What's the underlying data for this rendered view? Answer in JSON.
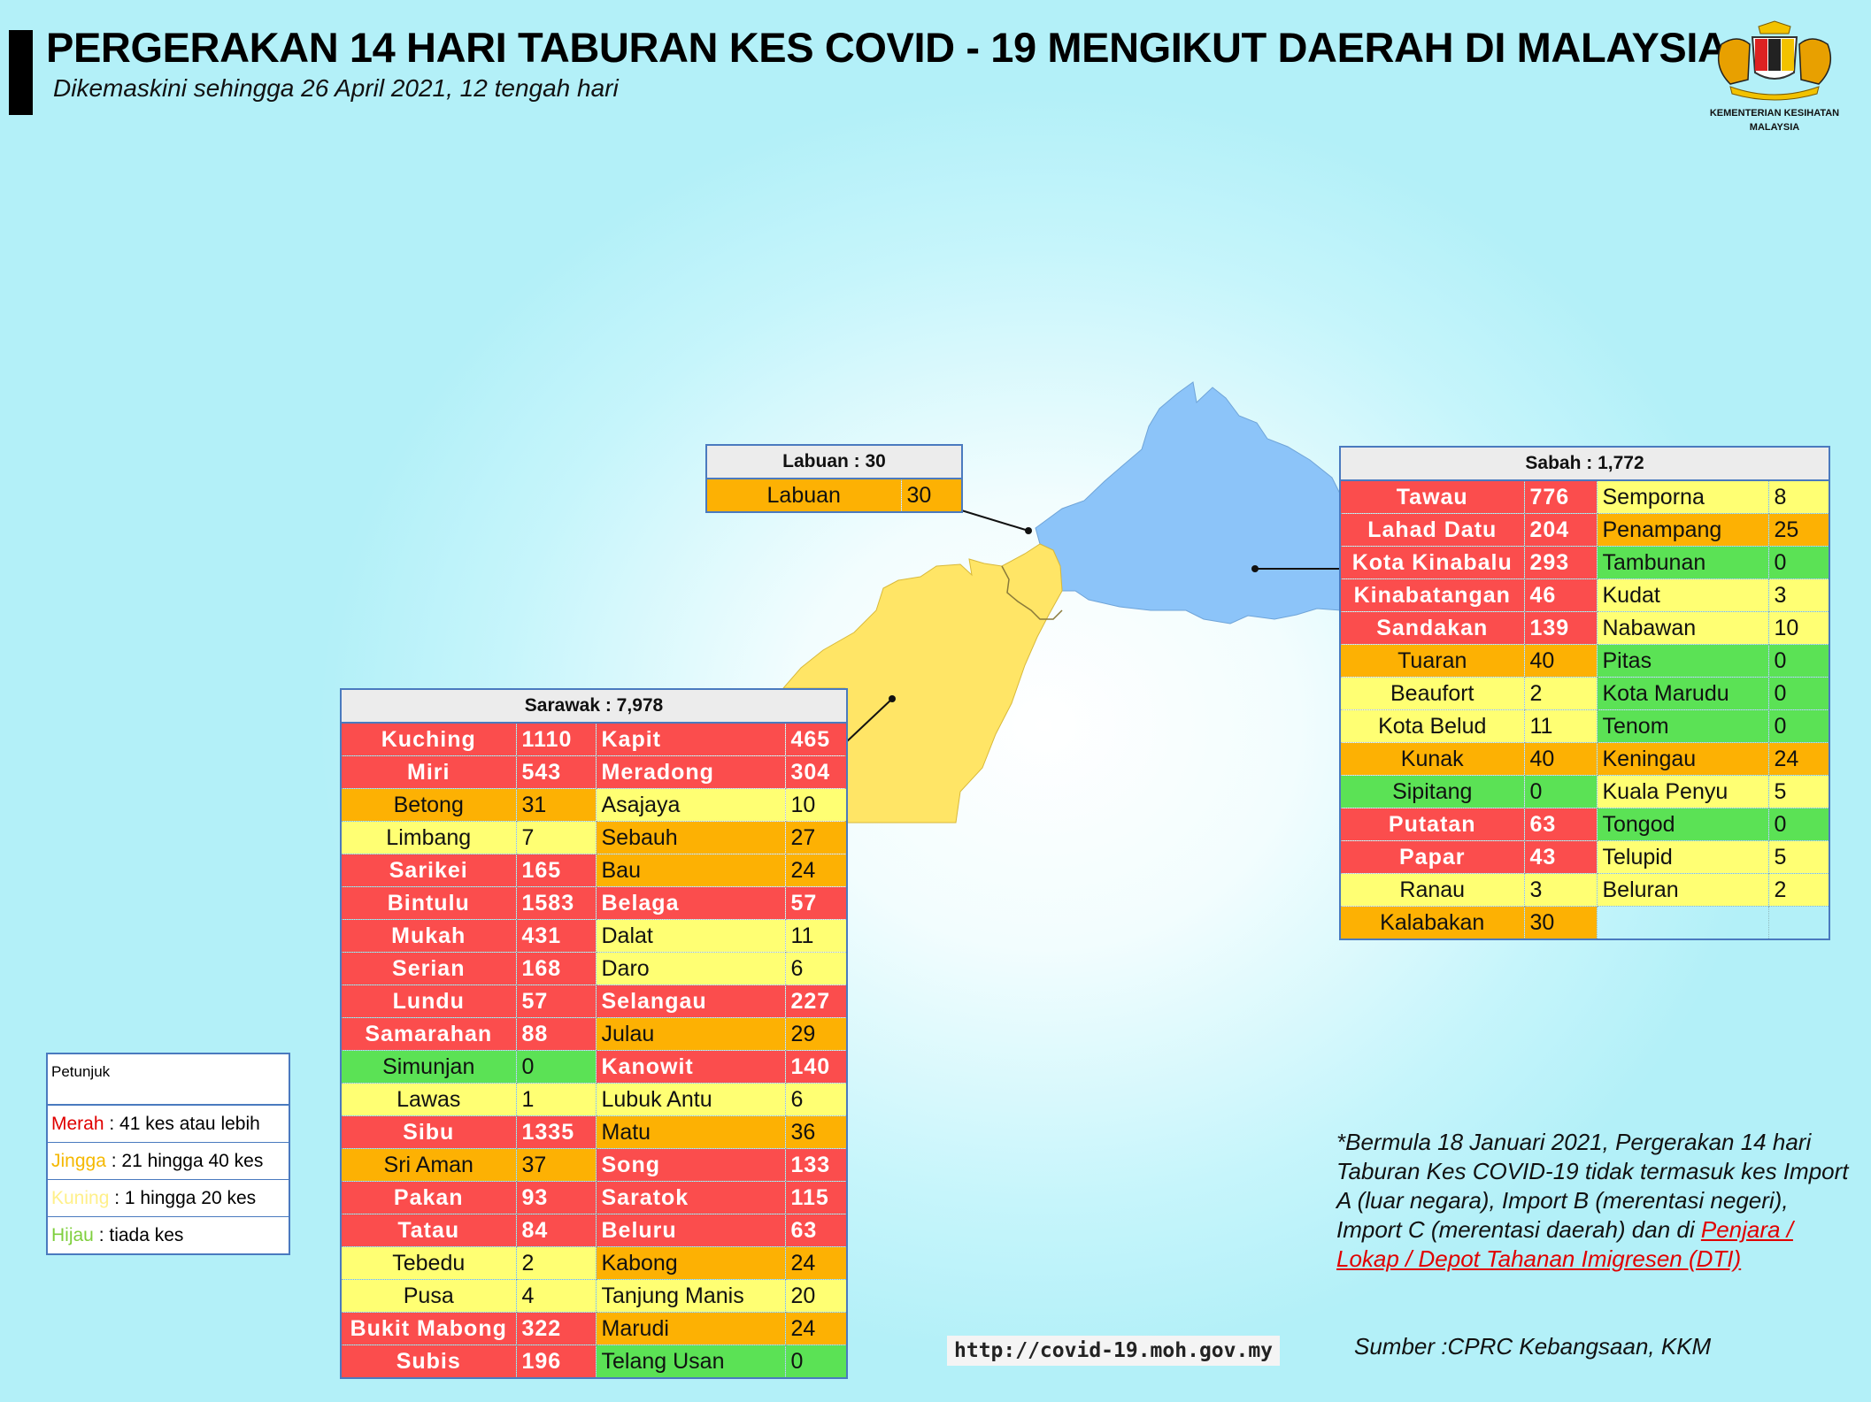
{
  "header": {
    "title": "PERGERAKAN 14 HARI TABURAN KES COVID - 19 MENGIKUT DAERAH DI MALAYSIA",
    "subtitle": "Dikemaskini sehingga 26 April 2021, 12 tengah hari"
  },
  "emblem": {
    "line1": "KEMENTERIAN KESIHATAN",
    "line2": "MALAYSIA"
  },
  "colors": {
    "merah": "#fb4d4d",
    "jingga": "#fdb103",
    "kuning": "#ffff73",
    "hijau": "#5be255",
    "sabah_map": "#8cc4f9",
    "sarawak_map": "#ffe566"
  },
  "labuan": {
    "header": "Labuan : 30",
    "rows": [
      {
        "name": "Labuan",
        "value": "30",
        "level": "o"
      }
    ]
  },
  "sabah": {
    "header": "Sabah : 1,772",
    "rows": [
      {
        "n1": "Tawau",
        "v1": "776",
        "l1": "r",
        "n2": "Semporna",
        "v2": "8",
        "l2": "y"
      },
      {
        "n1": "Lahad Datu",
        "v1": "204",
        "l1": "r",
        "n2": "Penampang",
        "v2": "25",
        "l2": "o"
      },
      {
        "n1": "Kota Kinabalu",
        "v1": "293",
        "l1": "r",
        "n2": "Tambunan",
        "v2": "0",
        "l2": "g"
      },
      {
        "n1": "Kinabatangan",
        "v1": "46",
        "l1": "r",
        "n2": "Kudat",
        "v2": "3",
        "l2": "y"
      },
      {
        "n1": "Sandakan",
        "v1": "139",
        "l1": "r",
        "n2": "Nabawan",
        "v2": "10",
        "l2": "y"
      },
      {
        "n1": "Tuaran",
        "v1": "40",
        "l1": "o",
        "n2": "Pitas",
        "v2": "0",
        "l2": "g"
      },
      {
        "n1": "Beaufort",
        "v1": "2",
        "l1": "y",
        "n2": "Kota Marudu",
        "v2": "0",
        "l2": "g"
      },
      {
        "n1": "Kota Belud",
        "v1": "11",
        "l1": "y",
        "n2": "Tenom",
        "v2": "0",
        "l2": "g"
      },
      {
        "n1": "Kunak",
        "v1": "40",
        "l1": "o",
        "n2": "Keningau",
        "v2": "24",
        "l2": "o"
      },
      {
        "n1": "Sipitang",
        "v1": "0",
        "l1": "g",
        "n2": "Kuala Penyu",
        "v2": "5",
        "l2": "y"
      },
      {
        "n1": "Putatan",
        "v1": "63",
        "l1": "r",
        "n2": "Tongod",
        "v2": "0",
        "l2": "g"
      },
      {
        "n1": "Papar",
        "v1": "43",
        "l1": "r",
        "n2": "Telupid",
        "v2": "5",
        "l2": "y"
      },
      {
        "n1": "Ranau",
        "v1": "3",
        "l1": "y",
        "n2": "Beluran",
        "v2": "2",
        "l2": "y"
      },
      {
        "n1": "Kalabakan",
        "v1": "30",
        "l1": "o",
        "n2": "",
        "v2": "",
        "l2": "e"
      }
    ]
  },
  "sarawak": {
    "header": "Sarawak : 7,978",
    "rows": [
      {
        "n1": "Kuching",
        "v1": "1110",
        "l1": "r",
        "n2": "Kapit",
        "v2": "465",
        "l2": "r"
      },
      {
        "n1": "Miri",
        "v1": "543",
        "l1": "r",
        "n2": "Meradong",
        "v2": "304",
        "l2": "r"
      },
      {
        "n1": "Betong",
        "v1": "31",
        "l1": "o",
        "n2": "Asajaya",
        "v2": "10",
        "l2": "y"
      },
      {
        "n1": "Limbang",
        "v1": "7",
        "l1": "y",
        "n2": "Sebauh",
        "v2": "27",
        "l2": "o"
      },
      {
        "n1": "Sarikei",
        "v1": "165",
        "l1": "r",
        "n2": "Bau",
        "v2": "24",
        "l2": "o"
      },
      {
        "n1": "Bintulu",
        "v1": "1583",
        "l1": "r",
        "n2": "Belaga",
        "v2": "57",
        "l2": "r"
      },
      {
        "n1": "Mukah",
        "v1": "431",
        "l1": "r",
        "n2": "Dalat",
        "v2": "11",
        "l2": "y"
      },
      {
        "n1": "Serian",
        "v1": "168",
        "l1": "r",
        "n2": "Daro",
        "v2": "6",
        "l2": "y"
      },
      {
        "n1": "Lundu",
        "v1": "57",
        "l1": "r",
        "n2": "Selangau",
        "v2": "227",
        "l2": "r"
      },
      {
        "n1": "Samarahan",
        "v1": "88",
        "l1": "r",
        "n2": "Julau",
        "v2": "29",
        "l2": "o"
      },
      {
        "n1": "Simunjan",
        "v1": "0",
        "l1": "g",
        "n2": "Kanowit",
        "v2": "140",
        "l2": "r"
      },
      {
        "n1": "Lawas",
        "v1": "1",
        "l1": "y",
        "n2": "Lubuk Antu",
        "v2": "6",
        "l2": "y"
      },
      {
        "n1": "Sibu",
        "v1": "1335",
        "l1": "r",
        "n2": "Matu",
        "v2": "36",
        "l2": "o"
      },
      {
        "n1": "Sri Aman",
        "v1": "37",
        "l1": "o",
        "n2": "Song",
        "v2": "133",
        "l2": "r"
      },
      {
        "n1": "Pakan",
        "v1": "93",
        "l1": "r",
        "n2": "Saratok",
        "v2": "115",
        "l2": "r"
      },
      {
        "n1": "Tatau",
        "v1": "84",
        "l1": "r",
        "n2": "Beluru",
        "v2": "63",
        "l2": "r"
      },
      {
        "n1": "Tebedu",
        "v1": "2",
        "l1": "y",
        "n2": "Kabong",
        "v2": "24",
        "l2": "o"
      },
      {
        "n1": "Pusa",
        "v1": "4",
        "l1": "y",
        "n2": "Tanjung Manis",
        "v2": "20",
        "l2": "y"
      },
      {
        "n1": "Bukit Mabong",
        "v1": "322",
        "l1": "r",
        "n2": "Marudi",
        "v2": "24",
        "l2": "o"
      },
      {
        "n1": "Subis",
        "v1": "196",
        "l1": "r",
        "n2": "Telang Usan",
        "v2": "0",
        "l2": "g"
      }
    ]
  },
  "legend": {
    "title": "Petunjuk",
    "items": [
      {
        "key": "Merah",
        "text": " : 41 kes atau lebih",
        "color": "#e00000"
      },
      {
        "key": "Jingga",
        "text": " : 21 hingga 40 kes",
        "color": "#f5b800"
      },
      {
        "key": "Kuning",
        "text": " : 1 hingga 20 kes",
        "color": "#fff08a"
      },
      {
        "key": "Hijau",
        "text": " : tiada kes",
        "color": "#7fcf3e"
      }
    ]
  },
  "note": {
    "text": "*Bermula 18 Januari 2021, Pergerakan 14 hari Taburan Kes COVID-19 tidak termasuk kes Import A (luar negara), Import B (merentasi negeri), Import C (merentasi daerah) dan di ",
    "link": "Penjara / Lokap / Depot Tahanan Imigresen (DTI)"
  },
  "footer": {
    "url": "http://covid-19.moh.gov.my",
    "source": "Sumber :CPRC Kebangsaan,  KKM"
  }
}
